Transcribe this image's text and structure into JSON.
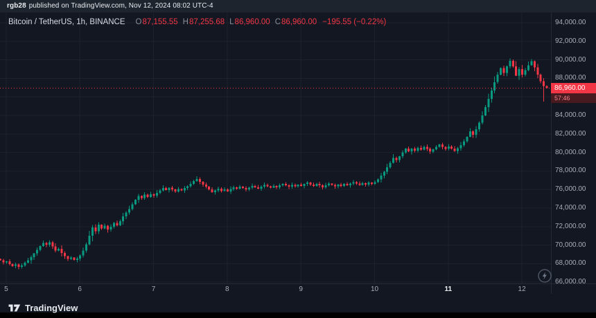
{
  "attribution": {
    "author": "rgb28",
    "text": "published on TradingView.com, Nov 12, 2024 08:02 UTC-4"
  },
  "header": {
    "symbol_line": "Bitcoin / TetherUS, 1h, BINANCE",
    "ohlc": [
      {
        "label": "O",
        "value": "87,155.55"
      },
      {
        "label": "H",
        "value": "87,255.68"
      },
      {
        "label": "L",
        "value": "86,960.00"
      },
      {
        "label": "C",
        "value": "86,960.00"
      }
    ],
    "change": "−195.55 (−0.22%)"
  },
  "footer": {
    "brand": "TradingView"
  },
  "chart_data": {
    "type": "candlestick",
    "title": "Bitcoin / TetherUS 1h BINANCE",
    "interval": "1h",
    "colors": {
      "up": "#089981",
      "down": "#f23645",
      "grid": "rgba(134,141,152,0.08)"
    },
    "y_axis": {
      "max": 94000,
      "min": 66000,
      "step": 2000,
      "labels": [
        "94,000.00",
        "92,000.00",
        "90,000.00",
        "88,000.00",
        "86,000.00",
        "84,000.00",
        "82,000.00",
        "80,000.00",
        "78,000.00",
        "76,000.00",
        "74,000.00",
        "72,000.00",
        "70,000.00",
        "68,000.00",
        "66,000.00"
      ]
    },
    "x_axis": {
      "day_labels": [
        {
          "text": "5",
          "index": 2
        },
        {
          "text": "6",
          "index": 26
        },
        {
          "text": "7",
          "index": 50
        },
        {
          "text": "8",
          "index": 74
        },
        {
          "text": "9",
          "index": 98
        },
        {
          "text": "10",
          "index": 122
        },
        {
          "text": "11",
          "index": 146,
          "bold": true
        },
        {
          "text": "12",
          "index": 170
        }
      ]
    },
    "first_open": 68500,
    "hourly_closes": [
      68350,
      68150,
      68250,
      67950,
      67750,
      67900,
      67650,
      67800,
      68100,
      68350,
      68700,
      69100,
      69500,
      69900,
      70250,
      70050,
      70300,
      69850,
      69400,
      69600,
      69150,
      68800,
      68500,
      68650,
      68400,
      68550,
      68900,
      69400,
      70100,
      71000,
      71900,
      71500,
      72200,
      71800,
      72100,
      71700,
      72000,
      72400,
      72150,
      72600,
      73100,
      73500,
      73900,
      74400,
      74900,
      75300,
      75100,
      75450,
      75200,
      75500,
      75350,
      75650,
      75900,
      76150,
      75950,
      76200,
      76000,
      75800,
      76050,
      75900,
      76150,
      76350,
      76600,
      76900,
      77150,
      76850,
      76550,
      76300,
      76000,
      75700,
      75900,
      76100,
      75850,
      76000,
      75800,
      76050,
      76250,
      76100,
      76300,
      76150,
      76000,
      76200,
      76400,
      76250,
      76100,
      76300,
      76500,
      76350,
      76200,
      76400,
      76250,
      76450,
      76600,
      76450,
      76300,
      76500,
      76350,
      76550,
      76400,
      76600,
      76750,
      76550,
      76400,
      76600,
      76450,
      76250,
      76450,
      76650,
      76500,
      76350,
      76550,
      76400,
      76600,
      76450,
      76650,
      76800,
      76650,
      76500,
      76700,
      76550,
      76750,
      76600,
      76800,
      77100,
      77500,
      77900,
      78400,
      78900,
      79400,
      79200,
      79600,
      80000,
      80400,
      80100,
      80400,
      80200,
      80500,
      80300,
      80600,
      80400,
      80100,
      80350,
      80600,
      80850,
      80600,
      80400,
      80650,
      80400,
      80150,
      80450,
      80800,
      81200,
      81700,
      82300,
      81900,
      82500,
      83200,
      84000,
      84900,
      85800,
      86700,
      87600,
      88400,
      89100,
      88600,
      89300,
      89900,
      89300,
      88300,
      89000,
      88400,
      88900,
      89400,
      89850,
      89200,
      88400,
      87700,
      87155.55,
      86960
    ],
    "wick_overrides": {
      "166": {
        "high": 90150
      },
      "177": {
        "low": 85500
      }
    },
    "last_candle": {
      "open": 87155.55,
      "high": 87255.68,
      "low": 86960.0,
      "close": 86960.0
    },
    "current_price": 86960,
    "current_price_label": "86,960.00",
    "countdown": "57:46"
  }
}
